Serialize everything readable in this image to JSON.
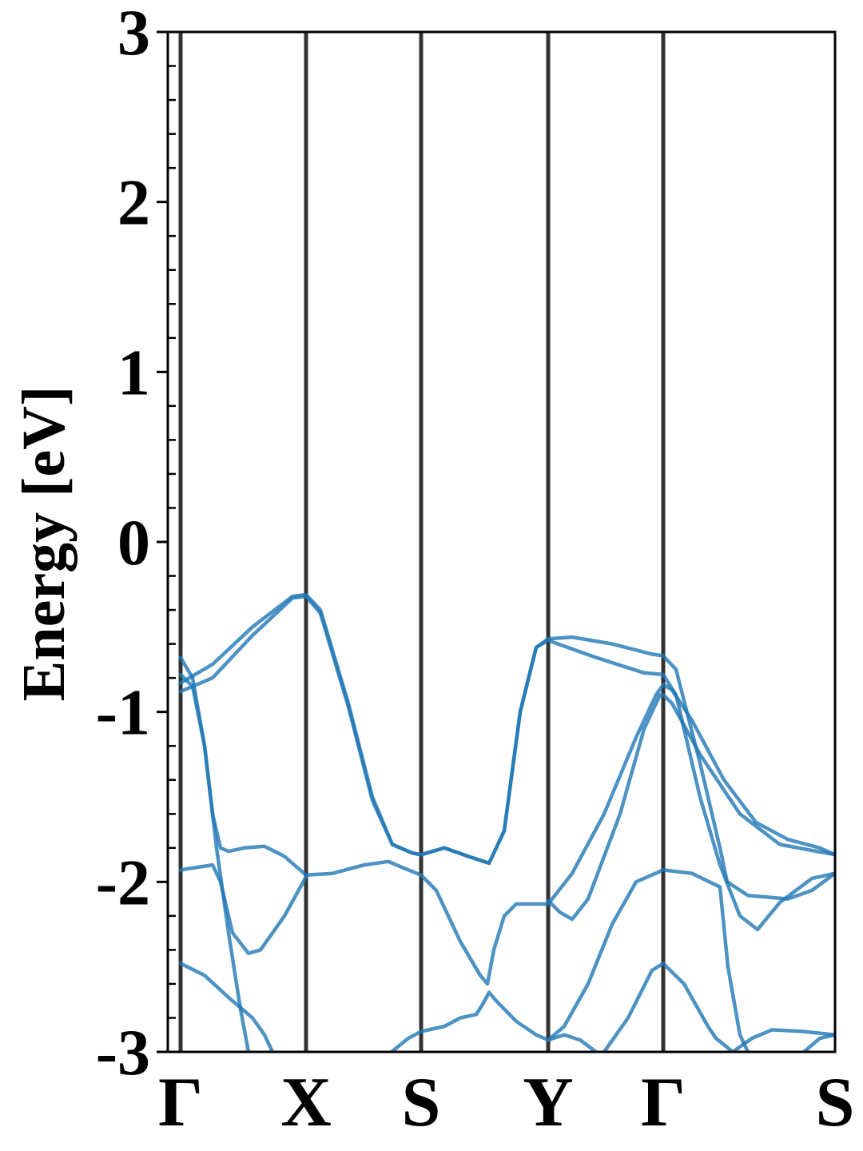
{
  "chart_data": {
    "type": "line",
    "ylabel": "Energy [eV]",
    "xlim": [
      -16,
      819
    ],
    "ylim": [
      -3,
      3
    ],
    "yticks": [
      -3,
      -2,
      -1,
      0,
      1,
      2,
      3
    ],
    "y_minor_per_major": 5,
    "xticks": [
      {
        "value": 0,
        "label": "Γ"
      },
      {
        "value": 157,
        "label": "X"
      },
      {
        "value": 301,
        "label": "S"
      },
      {
        "value": 460,
        "label": "Y"
      },
      {
        "value": 604,
        "label": "Γ"
      },
      {
        "value": 819,
        "label": "S"
      }
    ],
    "kpoint_lines": true,
    "color": "#1f77b4",
    "series": [
      {
        "x": [
          0,
          40,
          90,
          140,
          157,
          175,
          210,
          240,
          265,
          290,
          301,
          330,
          360,
          386,
          405,
          425,
          445,
          460,
          490,
          540,
          590,
          604,
          620,
          650,
          675,
          684,
          710,
          760,
          790,
          819
        ],
        "values": [
          -0.83,
          -0.72,
          -0.5,
          -0.32,
          -0.31,
          -0.4,
          -0.95,
          -1.5,
          -1.78,
          -1.83,
          -1.84,
          -1.8,
          -1.85,
          -1.89,
          -1.7,
          -1.0,
          -0.62,
          -0.57,
          -0.56,
          -0.6,
          -0.66,
          -0.67,
          -0.75,
          -1.3,
          -1.8,
          -2.0,
          -2.08,
          -2.1,
          -2.05,
          -1.95
        ]
      },
      {
        "x": [
          0,
          40,
          90,
          140,
          157,
          175,
          210,
          240,
          265,
          290,
          301,
          330,
          360,
          386,
          405,
          425,
          445,
          460,
          520,
          580,
          604,
          620,
          650,
          675,
          700,
          722,
          750,
          790,
          819
        ],
        "values": [
          -0.88,
          -0.8,
          -0.55,
          -0.33,
          -0.32,
          -0.42,
          -0.97,
          -1.52,
          -1.78,
          -1.83,
          -1.84,
          -1.8,
          -1.85,
          -1.89,
          -1.7,
          -1.0,
          -0.62,
          -0.58,
          -0.68,
          -0.77,
          -0.78,
          -0.9,
          -1.5,
          -1.9,
          -2.2,
          -2.28,
          -2.12,
          -1.98,
          -1.95
        ]
      },
      {
        "x": [
          0,
          15,
          30,
          45,
          60,
          75,
          85
        ],
        "values": [
          -0.68,
          -0.8,
          -1.2,
          -1.8,
          -2.3,
          -2.75,
          -3.0
        ]
      },
      {
        "x": [
          0,
          15,
          30,
          40,
          50,
          60,
          80,
          105,
          130,
          157,
          190,
          230,
          260,
          280,
          301,
          320,
          350,
          375,
          384,
          392,
          405,
          420,
          460,
          490,
          530,
          570,
          595,
          604,
          615,
          640,
          680,
          720,
          760,
          800,
          819
        ],
        "values": [
          -0.78,
          -0.85,
          -1.2,
          -1.6,
          -1.8,
          -1.82,
          -1.8,
          -1.79,
          -1.85,
          -1.96,
          -1.95,
          -1.9,
          -1.88,
          -1.92,
          -1.96,
          -2.05,
          -2.35,
          -2.55,
          -2.6,
          -2.4,
          -2.2,
          -2.13,
          -2.13,
          -1.95,
          -1.6,
          -1.15,
          -0.9,
          -0.84,
          -0.87,
          -1.05,
          -1.4,
          -1.65,
          -1.75,
          -1.8,
          -1.84
        ]
      },
      {
        "x": [
          0,
          40,
          50,
          65,
          85,
          100,
          130,
          157
        ],
        "values": [
          -1.93,
          -1.9,
          -2.0,
          -2.3,
          -2.42,
          -2.4,
          -2.2,
          -1.97
        ]
      },
      {
        "x": [
          460,
          475,
          490,
          510,
          550,
          580,
          600,
          604,
          615,
          650,
          700,
          750,
          819
        ],
        "values": [
          -2.11,
          -2.18,
          -2.22,
          -2.1,
          -1.6,
          -1.1,
          -0.9,
          -0.9,
          -0.95,
          -1.25,
          -1.6,
          -1.78,
          -1.84
        ]
      },
      {
        "x": [
          0,
          30,
          60,
          90,
          105,
          115
        ],
        "values": [
          -2.48,
          -2.55,
          -2.68,
          -2.8,
          -2.9,
          -3.0
        ]
      },
      {
        "x": [
          264,
          285,
          301,
          330,
          350,
          370,
          378,
          386,
          395,
          420,
          445,
          460,
          480,
          500,
          520
        ],
        "values": [
          -3.0,
          -2.92,
          -2.88,
          -2.85,
          -2.8,
          -2.78,
          -2.72,
          -2.65,
          -2.7,
          -2.82,
          -2.9,
          -2.93,
          -2.9,
          -2.93,
          -3.0
        ]
      },
      {
        "x": [
          460,
          480,
          510,
          540,
          570,
          604,
          640,
          675,
          685,
          700,
          710
        ],
        "values": [
          -2.93,
          -2.85,
          -2.6,
          -2.25,
          -2.0,
          -1.93,
          -1.95,
          -2.03,
          -2.5,
          -2.9,
          -3.0
        ]
      },
      {
        "x": [
          530,
          560,
          590,
          604,
          630,
          660,
          670,
          691,
          715,
          740,
          780,
          819
        ],
        "values": [
          -3.0,
          -2.8,
          -2.52,
          -2.48,
          -2.6,
          -2.85,
          -2.92,
          -3.0,
          -2.92,
          -2.87,
          -2.88,
          -2.9
        ]
      },
      {
        "x": [
          780,
          800,
          819
        ],
        "values": [
          -3.0,
          -2.92,
          -2.9
        ]
      }
    ]
  }
}
